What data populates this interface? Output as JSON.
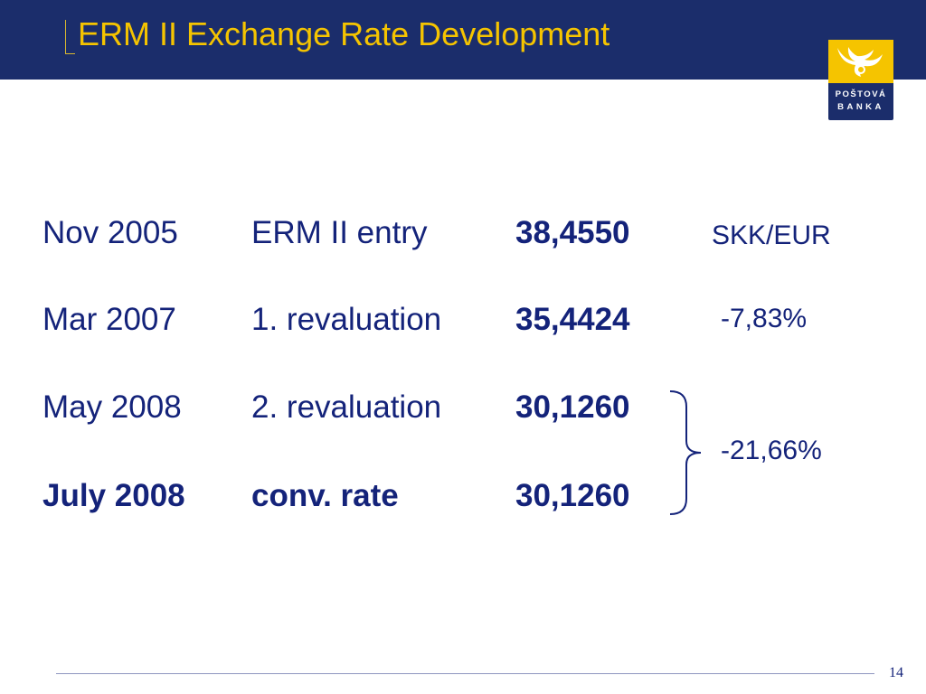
{
  "slide": {
    "title": "ERM II Exchange Rate Development",
    "page_number": "14",
    "logo": {
      "line1": "POŠTOVÁ",
      "line2": "BANKA"
    }
  },
  "rows": [
    {
      "date": "Nov 2005",
      "event": "ERM II entry",
      "rate": "38,4550",
      "unit": "SKK/EUR"
    },
    {
      "date": "Mar 2007",
      "event": "1. revaluation",
      "rate": "35,4424",
      "change": "-7,83%"
    },
    {
      "date": "May 2008",
      "event": "2. revaluation",
      "rate": "30,1260"
    },
    {
      "date": "July 2008",
      "event": "conv. rate",
      "rate": "30,1260"
    }
  ],
  "grouped_change": "-21,66%",
  "colors": {
    "header_bg": "#1b2d6b",
    "title": "#f5c400",
    "text": "#14237a"
  }
}
